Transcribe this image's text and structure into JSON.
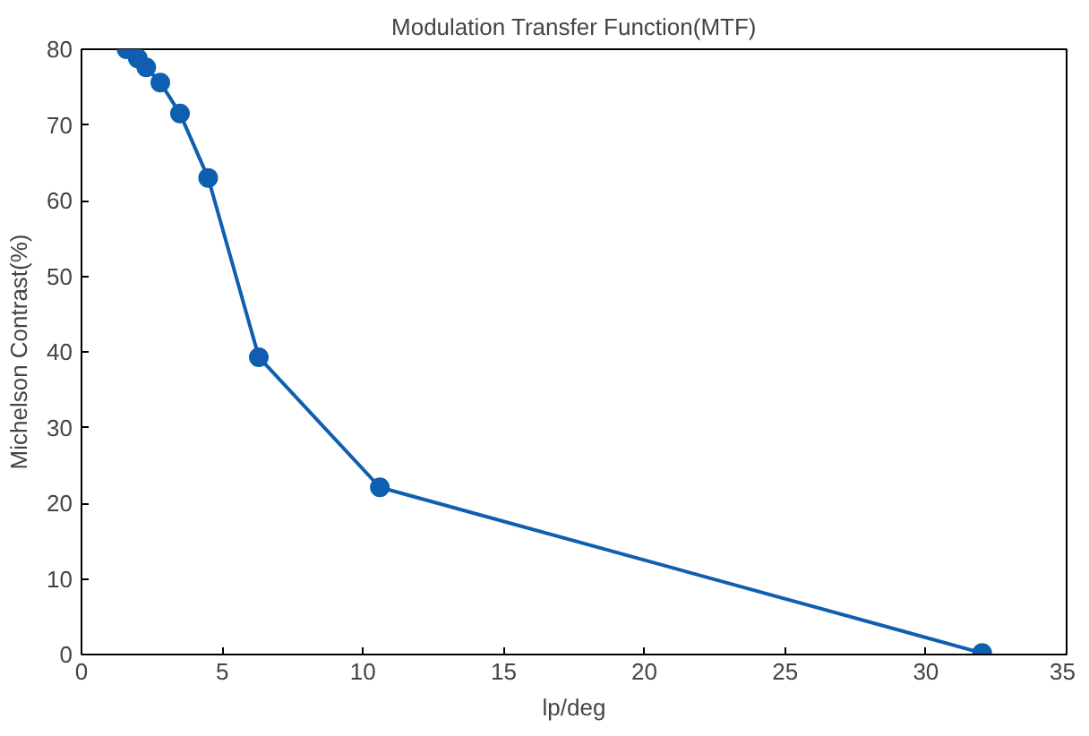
{
  "chart_data": {
    "type": "line",
    "title": "Modulation Transfer Function(MTF)",
    "xlabel": "lp/deg",
    "ylabel": "Michelson Contrast(%)",
    "x": [
      1.6,
      2.0,
      2.3,
      2.8,
      3.5,
      4.5,
      6.3,
      10.6,
      32
    ],
    "series": [
      {
        "color": "#0f5fb0",
        "values": [
          80,
          78.8,
          77.6,
          75.6,
          71.5,
          63,
          39.3,
          22.1,
          0.2
        ]
      }
    ],
    "xlim": [
      0,
      35
    ],
    "ylim": [
      0,
      80
    ],
    "xticks": [
      0,
      5,
      10,
      15,
      20,
      25,
      30,
      35
    ],
    "yticks": [
      0,
      10,
      20,
      30,
      40,
      50,
      60,
      70,
      80
    ],
    "grid": false,
    "marker": "circle",
    "line_style": "solid"
  }
}
